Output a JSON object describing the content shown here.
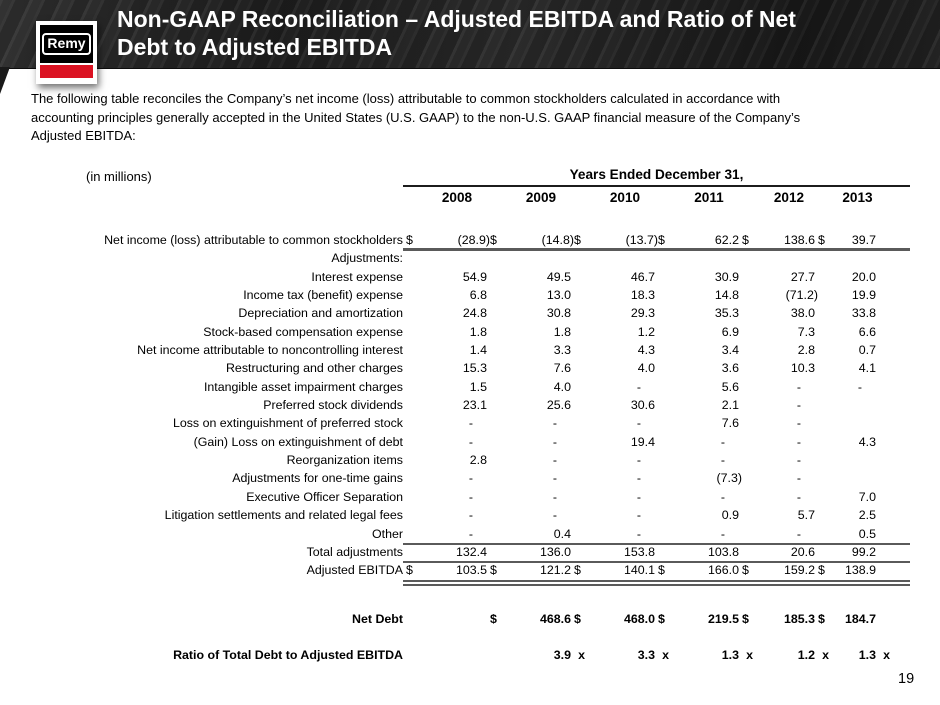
{
  "header": {
    "logo_text": "Remy",
    "title_line1": "Non-GAAP Reconciliation – Adjusted EBITDA and Ratio of Net",
    "title_line2": "Debt to Adjusted EBITDA"
  },
  "intro": {
    "lines": [
      "The following table reconciles the Company’s net income (loss) attributable to common stockholders calculated in accordance with",
      "accounting principles generally accepted in the United States (U.S. GAAP) to the non-U.S. GAAP financial measure of the Company’s",
      "Adjusted EBITDA:"
    ]
  },
  "table": {
    "units_label": "(in millions)",
    "years_header": "Years Ended December 31,",
    "years": [
      "2008",
      "2009",
      "2010",
      "2011",
      "2012",
      "2013"
    ],
    "rows": [
      {
        "label": "Net income (loss) attributable to common stockholders",
        "dollars": [
          "$",
          "$",
          "$",
          "$",
          "$",
          "$"
        ],
        "values": [
          "(28.9)",
          "(14.8)",
          "(13.7)",
          "62.2",
          "138.6",
          "39.7"
        ]
      },
      {
        "label": "Adjustments:",
        "values": [
          "",
          "",
          "",
          "",
          "",
          ""
        ]
      },
      {
        "label": "Interest expense",
        "values": [
          "54.9",
          "49.5",
          "46.7",
          "30.9",
          "27.7",
          "20.0"
        ]
      },
      {
        "label": "Income tax (benefit) expense",
        "values": [
          "6.8",
          "13.0",
          "18.3",
          "14.8",
          "(71.2)",
          "19.9"
        ]
      },
      {
        "label": "Depreciation and amortization",
        "values": [
          "24.8",
          "30.8",
          "29.3",
          "35.3",
          "38.0",
          "33.8"
        ]
      },
      {
        "label": "Stock-based compensation expense",
        "values": [
          "1.8",
          "1.8",
          "1.2",
          "6.9",
          "7.3",
          "6.6"
        ]
      },
      {
        "label": "Net income attributable to noncontrolling interest",
        "values": [
          "1.4",
          "3.3",
          "4.3",
          "3.4",
          "2.8",
          "0.7"
        ]
      },
      {
        "label": "Restructuring and other charges",
        "values": [
          "15.3",
          "7.6",
          "4.0",
          "3.6",
          "10.3",
          "4.1"
        ]
      },
      {
        "label": "Intangible asset impairment charges",
        "values": [
          "1.5",
          "4.0",
          "-",
          "5.6",
          "-",
          "-"
        ]
      },
      {
        "label": "Preferred stock dividends",
        "values": [
          "23.1",
          "25.6",
          "30.6",
          "2.1",
          "-",
          ""
        ]
      },
      {
        "label": "Loss on extinguishment of preferred stock",
        "values": [
          "-",
          "-",
          "-",
          "7.6",
          "-",
          ""
        ]
      },
      {
        "label": "(Gain) Loss on extinguishment of debt",
        "values": [
          "-",
          "-",
          "19.4",
          "-",
          "-",
          "4.3"
        ]
      },
      {
        "label": "Reorganization items",
        "values": [
          "2.8",
          "-",
          "-",
          "-",
          "-",
          ""
        ]
      },
      {
        "label": "Adjustments for one-time gains",
        "values": [
          "-",
          "-",
          "-",
          "(7.3)",
          "-",
          ""
        ]
      },
      {
        "label": "Executive Officer Separation",
        "values": [
          "-",
          "-",
          "-",
          "-",
          "-",
          "7.0"
        ]
      },
      {
        "label": "Litigation settlements and related legal fees",
        "values": [
          "-",
          "-",
          "-",
          "0.9",
          "5.7",
          "2.5"
        ]
      },
      {
        "label": "Other",
        "values": [
          "-",
          "0.4",
          "-",
          "-",
          "-",
          "0.5"
        ]
      },
      {
        "label": "Total adjustments",
        "values": [
          "132.4",
          "136.0",
          "153.8",
          "103.8",
          "20.6",
          "99.2"
        ]
      },
      {
        "label": "Adjusted EBITDA",
        "dollars": [
          "$",
          "$",
          "$",
          "$",
          "$",
          "$"
        ],
        "values": [
          "103.5",
          "121.2",
          "140.1",
          "166.0",
          "159.2",
          "138.9"
        ]
      }
    ],
    "net_debt": {
      "label": "Net Debt",
      "dollars": [
        "",
        "$",
        "$",
        "$",
        "$",
        "$"
      ],
      "values": [
        "",
        "468.6",
        "468.0",
        "219.5",
        "185.3",
        "184.7"
      ]
    },
    "ratio": {
      "label": "Ratio of Total Debt to Adjusted EBITDA",
      "values": [
        "",
        "3.9",
        "3.3",
        "1.3",
        "1.2",
        "1.3"
      ],
      "suffix": "x"
    }
  },
  "footer": {
    "page_number": "19"
  },
  "colors": {
    "accent_red": "#DB1222",
    "header_bg": "#262626",
    "rule_gray": "#5A5A5A",
    "rule_black": "#1C1C1C"
  }
}
